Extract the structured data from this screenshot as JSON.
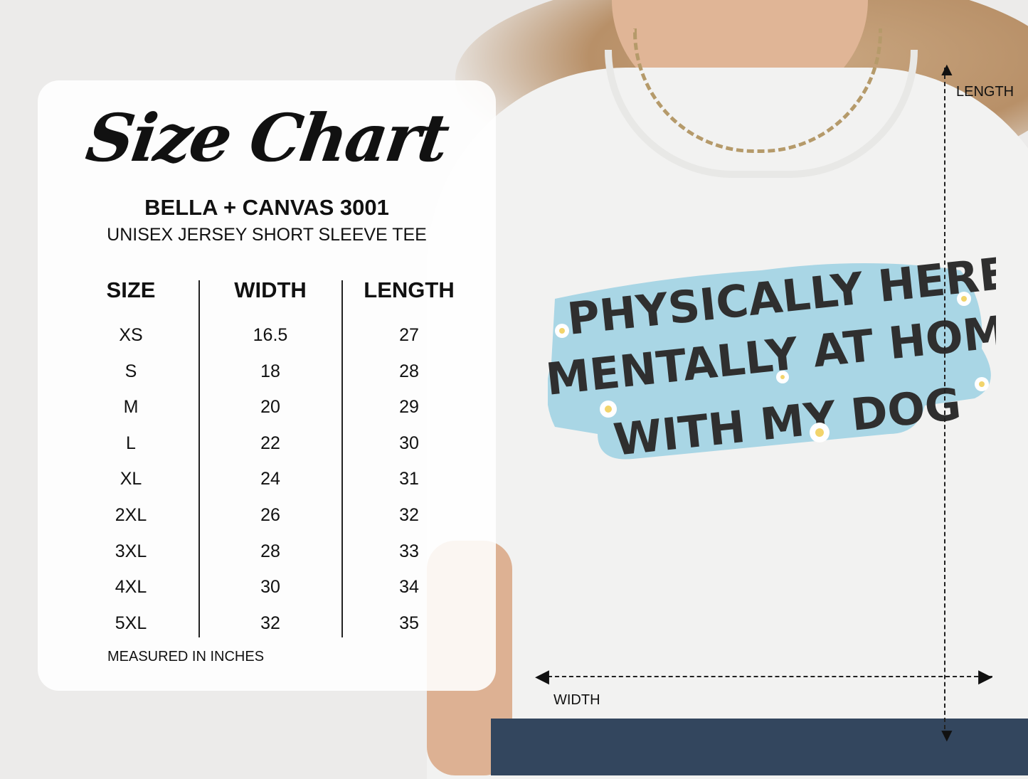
{
  "title": "Size Chart",
  "brand": "BELLA + CANVAS 3001",
  "subtitle": "UNISEX JERSEY SHORT SLEEVE TEE",
  "columns": [
    "SIZE",
    "WIDTH",
    "LENGTH"
  ],
  "rows": [
    [
      "XS",
      "16.5",
      "27"
    ],
    [
      "S",
      "18",
      "28"
    ],
    [
      "M",
      "20",
      "29"
    ],
    [
      "L",
      "22",
      "30"
    ],
    [
      "XL",
      "24",
      "31"
    ],
    [
      "2XL",
      "26",
      "32"
    ],
    [
      "3XL",
      "28",
      "33"
    ],
    [
      "4XL",
      "30",
      "34"
    ],
    [
      "5XL",
      "32",
      "35"
    ]
  ],
  "note": "MEASURED IN INCHES",
  "measure_labels": {
    "length": "LENGTH",
    "width": "WIDTH"
  },
  "design": {
    "lines": [
      "PHYSICALLY HERE",
      "MENTALLY AT HOME",
      "WITH MY DOG"
    ],
    "bg_color": "#a9d6e5",
    "text_color": "#2f2f2f"
  }
}
